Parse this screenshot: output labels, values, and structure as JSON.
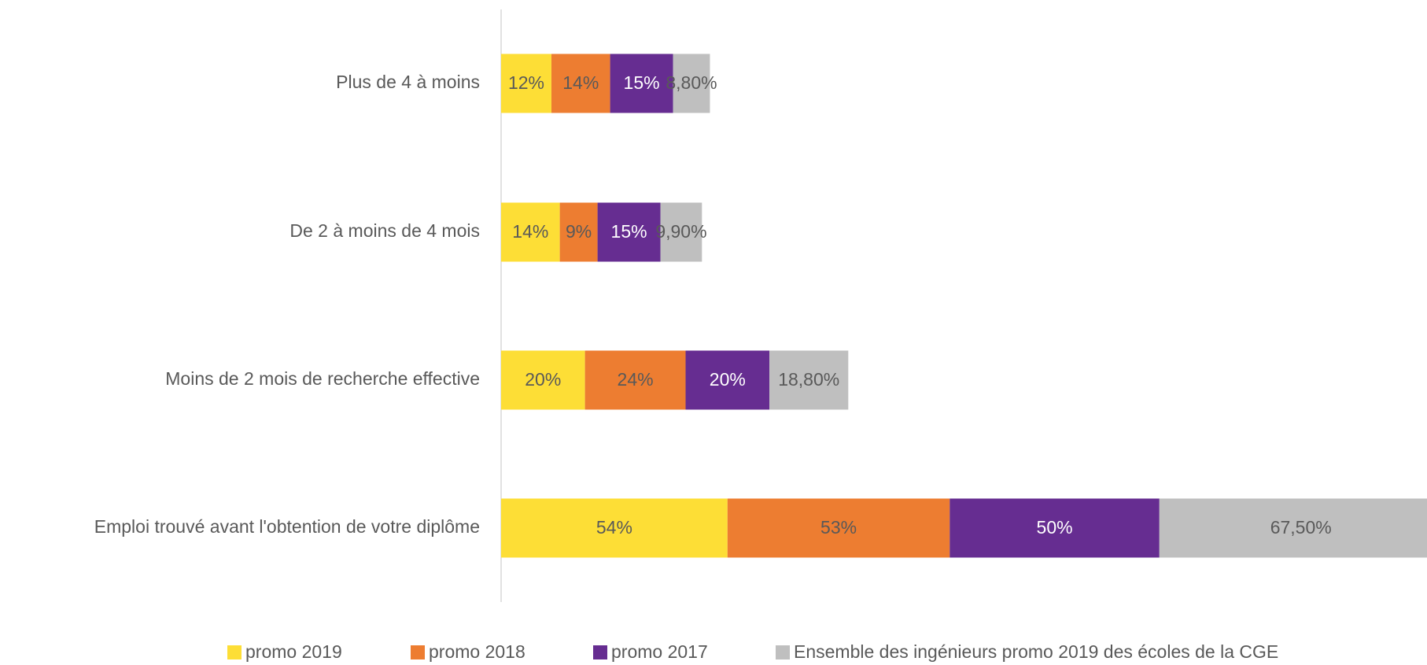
{
  "chart_data": {
    "type": "stacked-barh",
    "categories": [
      "Plus de 4 à moins",
      "De 2 à moins de 4 mois",
      "Moins de 2 mois de recherche effective",
      "Emploi trouvé avant l'obtention de votre diplôme"
    ],
    "series": [
      {
        "name": "promo 2019",
        "color": "#FDDE36",
        "values": [
          12,
          14,
          20,
          54
        ],
        "value_labels": [
          "12%",
          "14%",
          "20%",
          "54%"
        ]
      },
      {
        "name": "promo 2018",
        "color": "#ED7D31",
        "values": [
          14,
          9,
          24,
          53
        ],
        "value_labels": [
          "14%",
          "9%",
          "24%",
          "53%"
        ]
      },
      {
        "name": "promo 2017",
        "color": "#662D91",
        "values": [
          15,
          15,
          20,
          50
        ],
        "value_labels": [
          "15%",
          "15%",
          "20%",
          "50%"
        ]
      },
      {
        "name": "Ensemble des ingénieurs promo 2019 des écoles de la CGE",
        "color": "#BFBFBF",
        "values": [
          8.8,
          9.9,
          18.8,
          67.5
        ],
        "value_labels": [
          "8,80%",
          "9,90%",
          "18,80%",
          "67,50%"
        ]
      }
    ],
    "legend": "bottom"
  }
}
